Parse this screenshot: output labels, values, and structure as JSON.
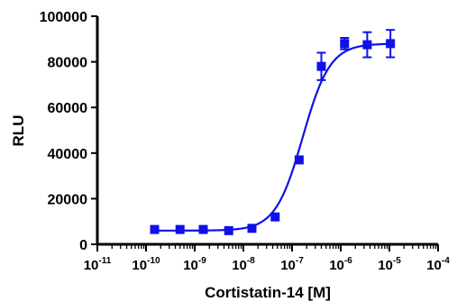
{
  "chart_data": {
    "type": "scatter",
    "title": "",
    "xlabel": "Cortistatin-14 [M]",
    "ylabel": "RLU",
    "x_scale": "log",
    "xlim": [
      1e-11,
      0.0001
    ],
    "ylim": [
      0,
      100000
    ],
    "grid": false,
    "legend": "none",
    "x_tick_values": [
      1e-11,
      1e-10,
      1e-09,
      1e-08,
      1e-07,
      1e-06,
      1e-05,
      0.0001
    ],
    "x_tick_labels": [
      {
        "base": "10",
        "exp": "-11"
      },
      {
        "base": "10",
        "exp": "-10"
      },
      {
        "base": "10",
        "exp": "-9"
      },
      {
        "base": "10",
        "exp": "-8"
      },
      {
        "base": "10",
        "exp": "-7"
      },
      {
        "base": "10",
        "exp": "-6"
      },
      {
        "base": "10",
        "exp": "-5"
      },
      {
        "base": "10",
        "exp": "-4"
      }
    ],
    "y_tick_values": [
      0,
      20000,
      40000,
      60000,
      80000,
      100000
    ],
    "y_tick_labels": [
      "0",
      "20000",
      "40000",
      "60000",
      "80000",
      "100000"
    ],
    "series": [
      {
        "marker": "square",
        "color": "#1010e8",
        "fit": "sigmoidal dose-response",
        "x": [
          1.5e-10,
          5e-10,
          1.5e-09,
          5e-09,
          1.5e-08,
          4.5e-08,
          1.4e-07,
          4e-07,
          1.2e-06,
          3.5e-06,
          1.05e-05
        ],
        "y": [
          6500,
          6500,
          6500,
          6000,
          7000,
          12000,
          37000,
          78000,
          88000,
          87500,
          88000
        ],
        "error": [
          500,
          500,
          500,
          500,
          500,
          1000,
          1500,
          6000,
          2500,
          5500,
          6000
        ]
      }
    ]
  }
}
